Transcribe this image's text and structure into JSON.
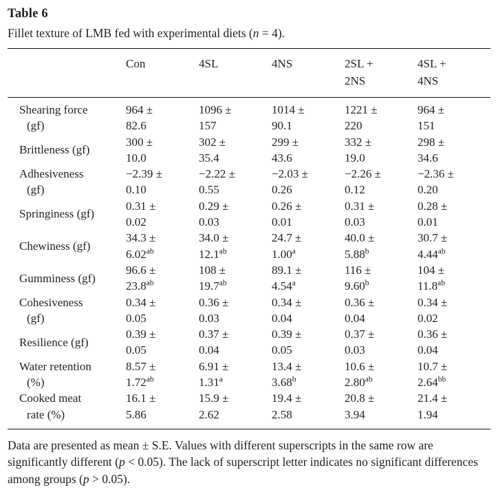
{
  "header": {
    "label": "Table 6",
    "caption": {
      "pre": "Fillet texture of LMB fed with experimental diets (",
      "var": "n",
      "post": " = 4)."
    }
  },
  "table": {
    "columns": [
      {
        "line1": "Con",
        "line2": ""
      },
      {
        "line1": "4SL",
        "line2": ""
      },
      {
        "line1": "4NS",
        "line2": ""
      },
      {
        "line1": "2SL +",
        "line2": "2NS"
      },
      {
        "line1": "4SL +",
        "line2": "4NS"
      }
    ],
    "rows": [
      {
        "label1": "Shearing force",
        "label2": "(gf)",
        "cells": [
          {
            "mean": "964 ±",
            "se": "82.6",
            "sup": ""
          },
          {
            "mean": "1096 ±",
            "se": "157",
            "sup": ""
          },
          {
            "mean": "1014 ±",
            "se": "90.1",
            "sup": ""
          },
          {
            "mean": "1221 ±",
            "se": "220",
            "sup": ""
          },
          {
            "mean": "964 ±",
            "se": "151",
            "sup": ""
          }
        ]
      },
      {
        "label1": "Brittleness (gf)",
        "label2": "",
        "cells": [
          {
            "mean": "300 ±",
            "se": "10.0",
            "sup": ""
          },
          {
            "mean": "302 ±",
            "se": "35.4",
            "sup": ""
          },
          {
            "mean": "299 ±",
            "se": "43.6",
            "sup": ""
          },
          {
            "mean": "332 ±",
            "se": "19.0",
            "sup": ""
          },
          {
            "mean": "298 ±",
            "se": "34.6",
            "sup": ""
          }
        ]
      },
      {
        "label1": "Adhesiveness",
        "label2": "(gf)",
        "cells": [
          {
            "mean": "−2.39 ±",
            "se": "0.10",
            "sup": ""
          },
          {
            "mean": "−2.22 ±",
            "se": "0.55",
            "sup": ""
          },
          {
            "mean": "−2.03 ±",
            "se": "0.26",
            "sup": ""
          },
          {
            "mean": "−2.26 ±",
            "se": "0.12",
            "sup": ""
          },
          {
            "mean": "−2.36 ±",
            "se": "0.20",
            "sup": ""
          }
        ]
      },
      {
        "label1": "Springiness (gf)",
        "label2": "",
        "cells": [
          {
            "mean": "0.31 ±",
            "se": "0.02",
            "sup": ""
          },
          {
            "mean": "0.29 ±",
            "se": "0.03",
            "sup": ""
          },
          {
            "mean": "0.26 ±",
            "se": "0.01",
            "sup": ""
          },
          {
            "mean": "0.31 ±",
            "se": "0.03",
            "sup": ""
          },
          {
            "mean": "0.28 ±",
            "se": "0.01",
            "sup": ""
          }
        ]
      },
      {
        "label1": "Chewiness (gf)",
        "label2": "",
        "cells": [
          {
            "mean": "34.3 ±",
            "se": "6.02",
            "sup": "ab"
          },
          {
            "mean": "34.0 ±",
            "se": "12.1",
            "sup": "ab"
          },
          {
            "mean": "24.7 ±",
            "se": "1.00",
            "sup": "a"
          },
          {
            "mean": "40.0 ±",
            "se": "5.88",
            "sup": "b"
          },
          {
            "mean": "30.7 ±",
            "se": "4.44",
            "sup": "ab"
          }
        ]
      },
      {
        "label1": "Gumminess (gf)",
        "label2": "",
        "cells": [
          {
            "mean": "96.6 ±",
            "se": "23.8",
            "sup": "ab"
          },
          {
            "mean": "108 ±",
            "se": "19.7",
            "sup": "ab"
          },
          {
            "mean": "89.1 ±",
            "se": "4.54",
            "sup": "a"
          },
          {
            "mean": "116 ±",
            "se": "9.60",
            "sup": "b"
          },
          {
            "mean": "104 ±",
            "se": "11.8",
            "sup": "ab"
          }
        ]
      },
      {
        "label1": "Cohesiveness",
        "label2": "(gf)",
        "cells": [
          {
            "mean": "0.34 ±",
            "se": "0.05",
            "sup": ""
          },
          {
            "mean": "0.36 ±",
            "se": "0.03",
            "sup": ""
          },
          {
            "mean": "0.34 ±",
            "se": "0.04",
            "sup": ""
          },
          {
            "mean": "0.36 ±",
            "se": "0.04",
            "sup": ""
          },
          {
            "mean": "0.34 ±",
            "se": "0.02",
            "sup": ""
          }
        ]
      },
      {
        "label1": "Resilience (gf)",
        "label2": "",
        "cells": [
          {
            "mean": "0.39 ±",
            "se": "0.05",
            "sup": ""
          },
          {
            "mean": "0.37 ±",
            "se": "0.04",
            "sup": ""
          },
          {
            "mean": "0.39 ±",
            "se": "0.05",
            "sup": ""
          },
          {
            "mean": "0.37 ±",
            "se": "0.03",
            "sup": ""
          },
          {
            "mean": "0.36 ±",
            "se": "0.04",
            "sup": ""
          }
        ]
      },
      {
        "label1": "Water retention",
        "label2": "(%)",
        "cells": [
          {
            "mean": "8.57 ±",
            "se": "1.72",
            "sup": "ab"
          },
          {
            "mean": "6.91 ±",
            "se": "1.31",
            "sup": "a"
          },
          {
            "mean": "13.4 ±",
            "se": "3.68",
            "sup": "b"
          },
          {
            "mean": "10.6 ±",
            "se": "2.80",
            "sup": "ab"
          },
          {
            "mean": "10.7 ±",
            "se": "2.64",
            "sup": "bb"
          }
        ]
      },
      {
        "label1": "Cooked meat",
        "label2": "rate (%)",
        "cells": [
          {
            "mean": "16.1 ±",
            "se": "5.86",
            "sup": ""
          },
          {
            "mean": "15.9 ±",
            "se": "2.62",
            "sup": ""
          },
          {
            "mean": "19.4 ±",
            "se": "2.58",
            "sup": ""
          },
          {
            "mean": "20.8 ±",
            "se": "3.94",
            "sup": ""
          },
          {
            "mean": "21.4 ±",
            "se": "1.94",
            "sup": ""
          }
        ]
      }
    ]
  },
  "footnote": {
    "p1": "Data are presented as mean ± S.E. Values with different superscripts in the same row are significantly different (",
    "i1": "p",
    "p2": " < 0.05). The lack of superscript letter indicates no significant differences among groups (",
    "i2": "p",
    "p3": " > 0.05)."
  },
  "colors": {
    "text": "#1f1f1f",
    "rule": "#0d0d0d",
    "background": "#ffffff"
  }
}
